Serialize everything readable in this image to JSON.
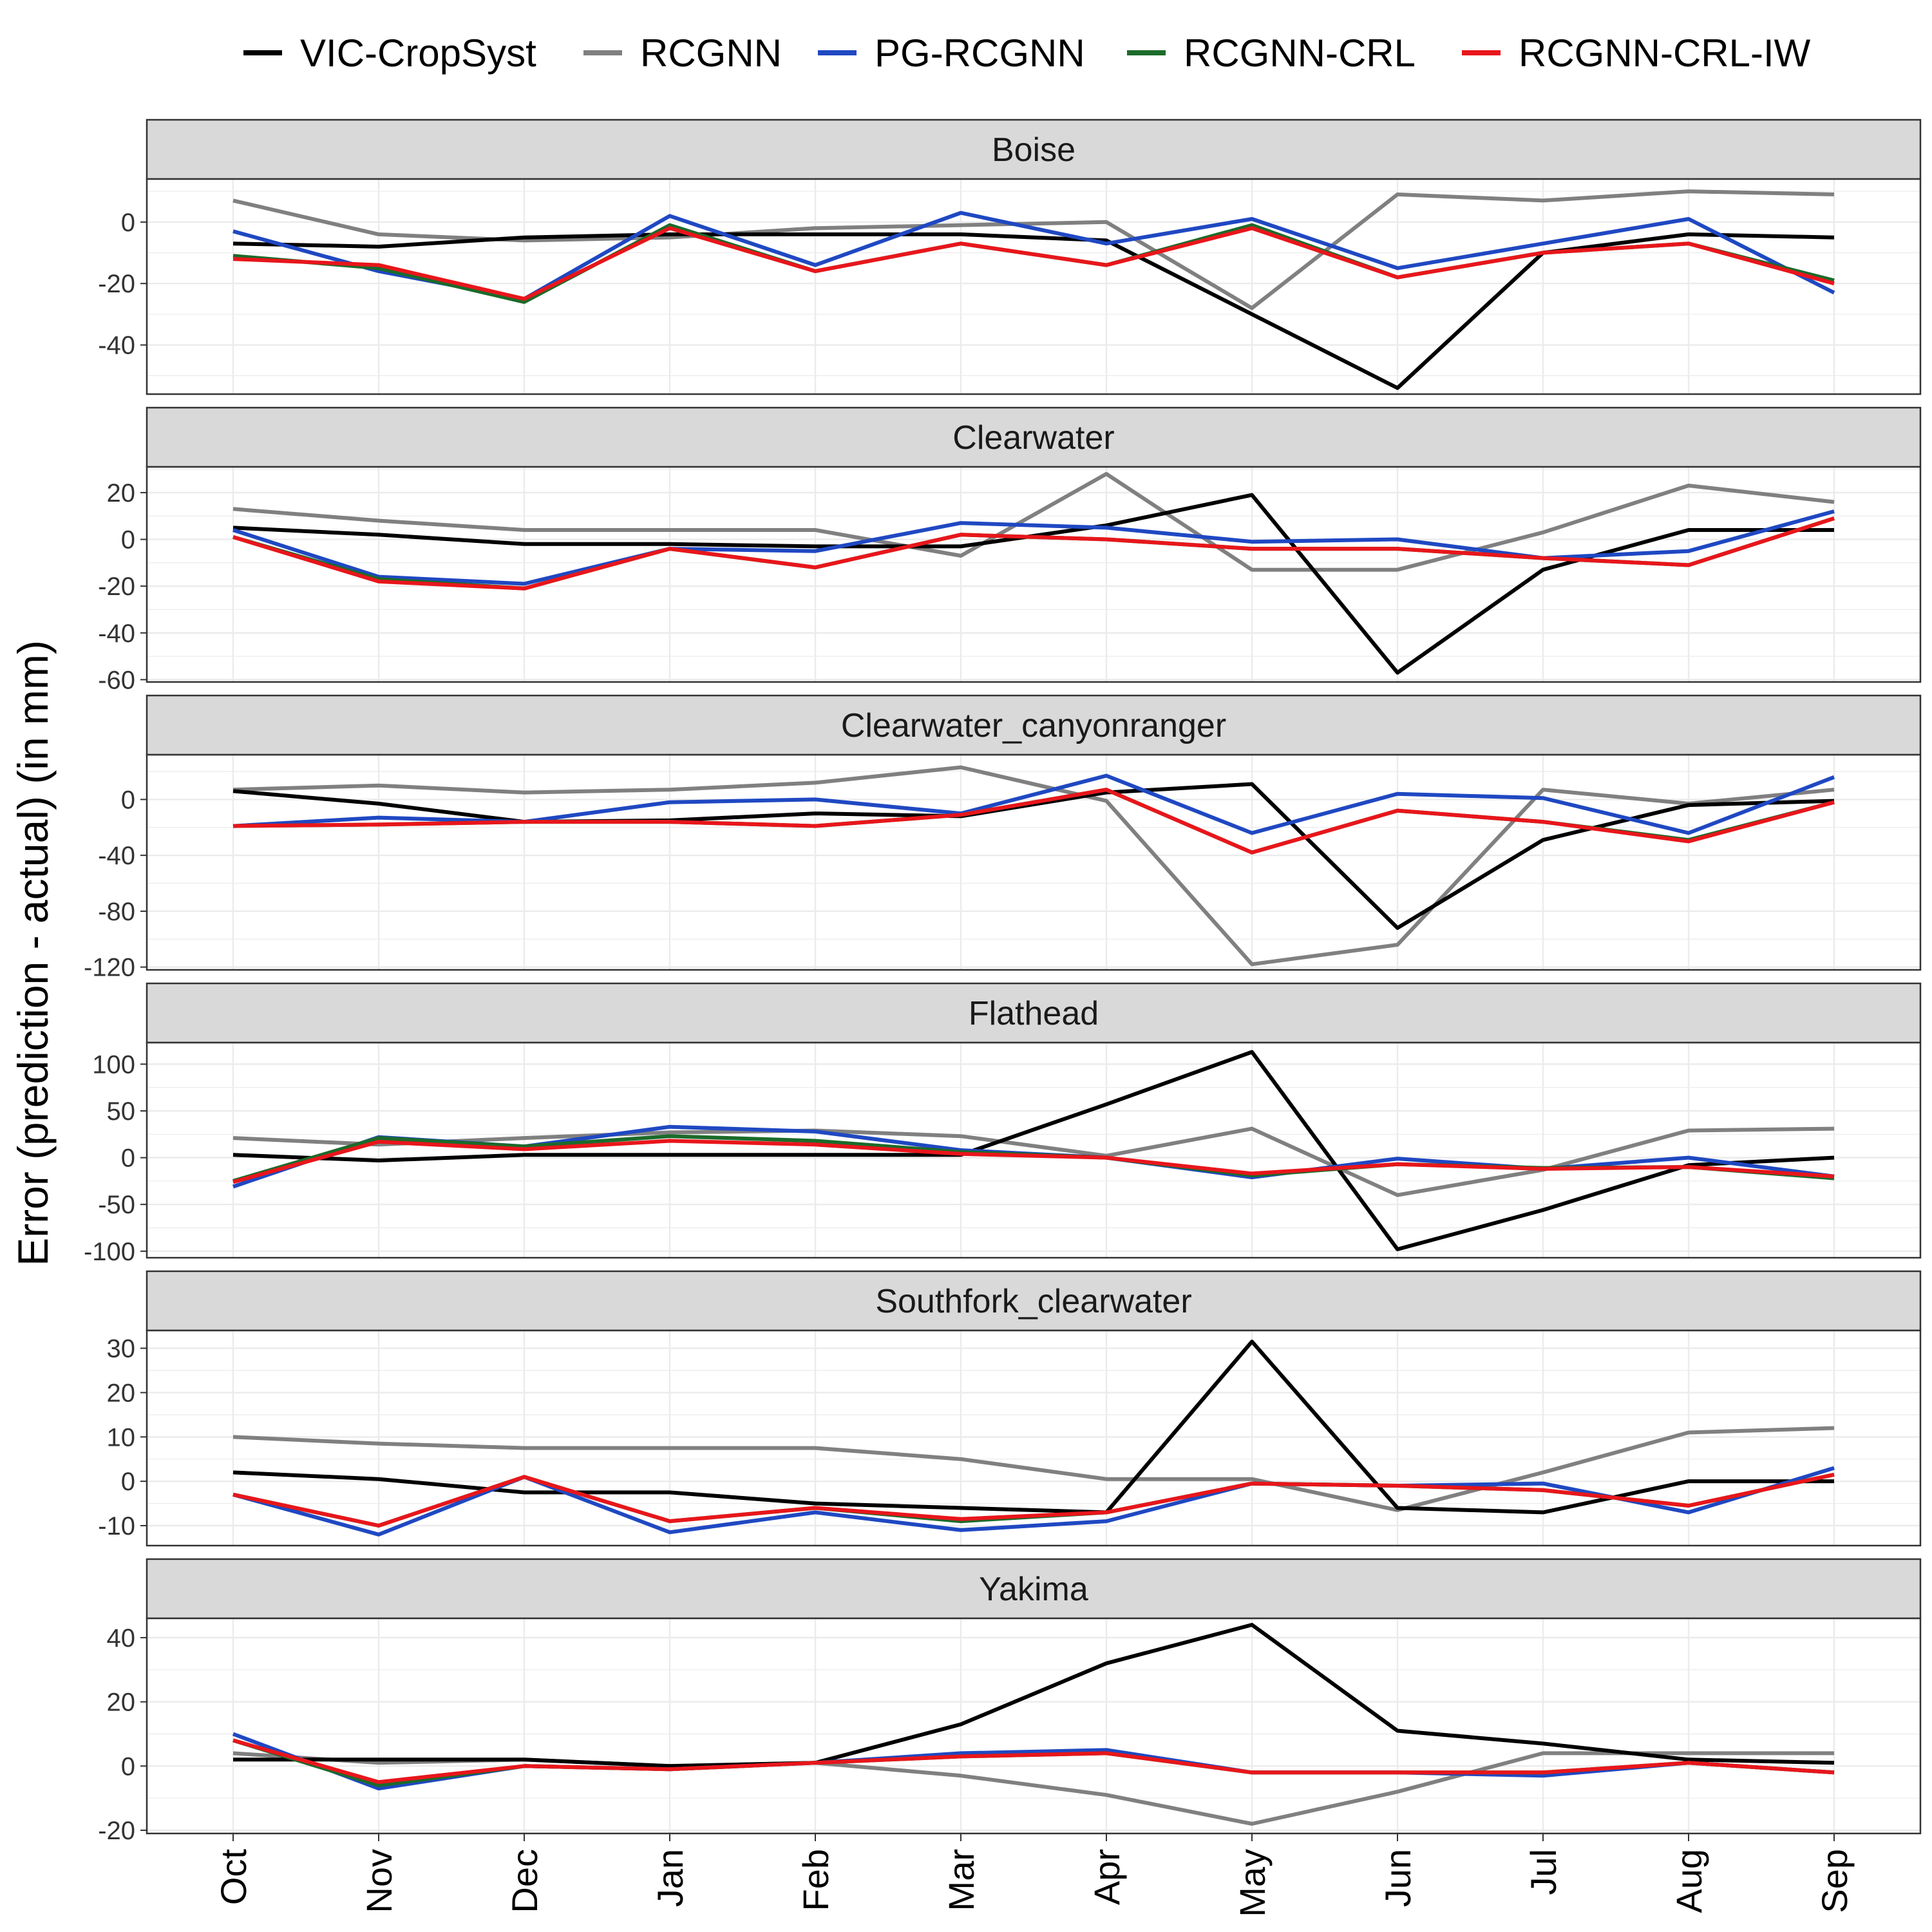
{
  "chart_data": {
    "type": "line",
    "ylabel": "Error (prediction - actual) (in mm)",
    "xlabel": "",
    "legend_position": "top",
    "categories": [
      "Oct",
      "Nov",
      "Dec",
      "Jan",
      "Feb",
      "Mar",
      "Apr",
      "May",
      "Jun",
      "Jul",
      "Aug",
      "Sep"
    ],
    "series": [
      {
        "name": "VIC-CropSyst",
        "color": "#000000"
      },
      {
        "name": "RCGNN",
        "color": "#808080"
      },
      {
        "name": "PG-RCGNN",
        "color": "#1f48c2"
      },
      {
        "name": "RCGNN-CRL",
        "color": "#1b6b2a"
      },
      {
        "name": "RCGNN-CRL-IW",
        "color": "#e8161b"
      }
    ],
    "panels": [
      {
        "title": "Boise",
        "ylim": [
          -56,
          14
        ],
        "yticks": [
          0,
          -20,
          -40
        ],
        "values": {
          "VIC-CropSyst": [
            -7,
            -8,
            -5,
            -4,
            -4,
            -4,
            -6,
            -30,
            -54,
            -10,
            -4,
            -5
          ],
          "RCGNN": [
            7,
            -4,
            -6,
            -5,
            -2,
            -1,
            0,
            -28,
            9,
            7,
            10,
            9
          ],
          "PG-RCGNN": [
            -3,
            -16,
            -25,
            2,
            -14,
            3,
            -7,
            1,
            -15,
            -7,
            1,
            -23
          ],
          "RCGNN-CRL": [
            -11,
            -15,
            -26,
            -1,
            -16,
            -7,
            -14,
            -1,
            -18,
            -10,
            -7,
            -19
          ],
          "RCGNN-CRL-IW": [
            -12,
            -14,
            -25,
            -2,
            -16,
            -7,
            -14,
            -2,
            -18,
            -10,
            -7,
            -20
          ]
        }
      },
      {
        "title": "Clearwater",
        "ylim": [
          -61,
          31
        ],
        "yticks": [
          20,
          0,
          -20,
          -40,
          -60
        ],
        "values": {
          "VIC-CropSyst": [
            5,
            2,
            -2,
            -2,
            -3,
            -3,
            6,
            19,
            -57,
            -13,
            4,
            4
          ],
          "RCGNN": [
            13,
            8,
            4,
            4,
            4,
            -7,
            28,
            -13,
            -13,
            3,
            23,
            16
          ],
          "PG-RCGNN": [
            4,
            -16,
            -19,
            -4,
            -5,
            7,
            5,
            -1,
            0,
            -8,
            -5,
            12
          ],
          "RCGNN-CRL": [
            1,
            -17,
            -21,
            -4,
            -12,
            2,
            0,
            -4,
            -4,
            -8,
            -11,
            9
          ],
          "RCGNN-CRL-IW": [
            1,
            -18,
            -21,
            -4,
            -12,
            2,
            0,
            -4,
            -4,
            -8,
            -11,
            9
          ]
        }
      },
      {
        "title": "Clearwater_canyonranger",
        "ylim": [
          -122,
          32
        ],
        "yticks": [
          0,
          -40,
          -80,
          -120
        ],
        "values": {
          "VIC-CropSyst": [
            6,
            -3,
            -16,
            -15,
            -10,
            -12,
            5,
            11,
            -92,
            -29,
            -4,
            -1
          ],
          "RCGNN": [
            7,
            10,
            5,
            7,
            12,
            23,
            -1,
            -118,
            -104,
            7,
            -3,
            7
          ],
          "PG-RCGNN": [
            -19,
            -13,
            -16,
            -2,
            0,
            -10,
            17,
            -24,
            4,
            1,
            -24,
            16
          ],
          "RCGNN-CRL": [
            -19,
            -18,
            -16,
            -16,
            -19,
            -11,
            7,
            -38,
            -8,
            -16,
            -29,
            -2
          ],
          "RCGNN-CRL-IW": [
            -19,
            -18,
            -16,
            -16,
            -19,
            -11,
            7,
            -38,
            -8,
            -16,
            -30,
            -2
          ]
        }
      },
      {
        "title": "Flathead",
        "ylim": [
          -107,
          123
        ],
        "yticks": [
          100,
          50,
          0,
          -50,
          -100
        ],
        "values": {
          "VIC-CropSyst": [
            3,
            -3,
            3,
            3,
            3,
            3,
            57,
            113,
            -98,
            -56,
            -8,
            0
          ],
          "RCGNN": [
            21,
            14,
            21,
            27,
            29,
            23,
            2,
            31,
            -40,
            -13,
            29,
            31
          ],
          "PG-RCGNN": [
            -31,
            22,
            12,
            33,
            28,
            8,
            0,
            -21,
            -1,
            -12,
            0,
            -20
          ],
          "RCGNN-CRL": [
            -25,
            21,
            12,
            23,
            18,
            6,
            0,
            -19,
            -7,
            -11,
            -10,
            -22
          ],
          "RCGNN-CRL-IW": [
            -26,
            17,
            9,
            18,
            14,
            4,
            0,
            -17,
            -7,
            -12,
            -10,
            -20
          ]
        }
      },
      {
        "title": "Southfork_clearwater",
        "ylim": [
          -14.5,
          34
        ],
        "yticks": [
          30,
          20,
          10,
          0,
          -10
        ],
        "values": {
          "VIC-CropSyst": [
            2,
            0.5,
            -2.5,
            -2.5,
            -5,
            -6,
            -7,
            31.5,
            -6,
            -7,
            0,
            0
          ],
          "RCGNN": [
            10,
            8.5,
            7.5,
            7.5,
            7.5,
            5,
            0.5,
            0.5,
            -6.5,
            2,
            11,
            12
          ],
          "PG-RCGNN": [
            -3,
            -12,
            1,
            -11.5,
            -7,
            -11,
            -9,
            -0.5,
            -1,
            -0.5,
            -7,
            3
          ],
          "RCGNN-CRL": [
            -3,
            -10,
            1,
            -9,
            -6,
            -9,
            -7,
            -0.5,
            -1,
            -2,
            -5.5,
            1.5
          ],
          "RCGNN-CRL-IW": [
            -3,
            -10,
            1,
            -9,
            -6,
            -8.5,
            -7,
            -0.5,
            -1,
            -2,
            -5.5,
            1.5
          ]
        }
      },
      {
        "title": "Yakima",
        "ylim": [
          -21,
          46
        ],
        "yticks": [
          40,
          20,
          0,
          -20
        ],
        "values": {
          "VIC-CropSyst": [
            2,
            2,
            2,
            0,
            1,
            13,
            32,
            44,
            11,
            7,
            2,
            1
          ],
          "RCGNN": [
            4,
            1,
            2,
            0,
            1,
            -3,
            -9,
            -18,
            -8,
            4,
            4,
            4
          ],
          "PG-RCGNN": [
            10,
            -7,
            0,
            -1,
            1,
            4,
            5,
            -2,
            -2,
            -3,
            1,
            -2
          ],
          "RCGNN-CRL": [
            8,
            -6,
            0,
            -1,
            1,
            3,
            4,
            -2,
            -2,
            -2,
            1,
            -2
          ],
          "RCGNN-CRL-IW": [
            8,
            -5,
            0,
            -1,
            1,
            3,
            4,
            -2,
            -2,
            -2,
            1,
            -2
          ]
        }
      }
    ]
  }
}
